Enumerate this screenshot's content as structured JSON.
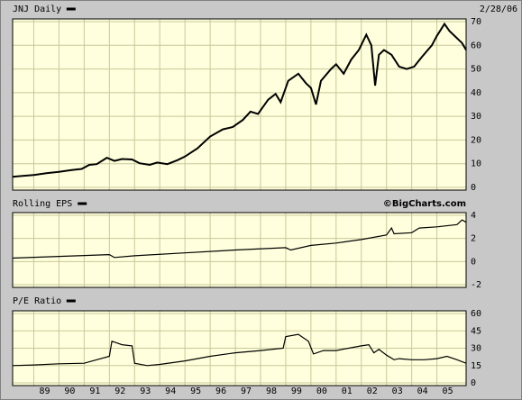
{
  "chart_data": [
    {
      "type": "line",
      "title": "JNJ Daily",
      "subtitle": "2/28/06",
      "color": "#000000",
      "grid": true,
      "x": [
        1988.16,
        1988.5,
        1989.0,
        1989.5,
        1990.0,
        1990.5,
        1990.9,
        1991.2,
        1991.5,
        1991.9,
        1992.2,
        1992.5,
        1992.9,
        1993.2,
        1993.6,
        1993.9,
        1994.3,
        1994.7,
        1995.0,
        1995.5,
        1996.0,
        1996.5,
        1996.9,
        1997.3,
        1997.6,
        1997.9,
        1998.3,
        1998.6,
        1998.8,
        1999.1,
        1999.5,
        1999.8,
        2000.0,
        2000.2,
        2000.4,
        2000.8,
        2001.0,
        2001.3,
        2001.6,
        2001.9,
        2002.2,
        2002.4,
        2002.55,
        2002.7,
        2002.9,
        2003.2,
        2003.5,
        2003.8,
        2004.1,
        2004.4,
        2004.8,
        2005.0,
        2005.3,
        2005.5,
        2005.8,
        2006.0,
        2006.16
      ],
      "values": [
        4.5,
        4.8,
        5.2,
        6.0,
        6.6,
        7.3,
        7.8,
        9.5,
        9.8,
        12.5,
        11.2,
        12.0,
        11.8,
        10.2,
        9.5,
        10.5,
        9.8,
        11.5,
        13.0,
        16.5,
        21.5,
        24.5,
        25.5,
        28.5,
        32.0,
        31.0,
        37.0,
        39.5,
        36.0,
        45.0,
        48.0,
        44.0,
        42.0,
        35.0,
        45.0,
        50.0,
        52.0,
        48.0,
        54.0,
        58.0,
        64.5,
        60.0,
        43.0,
        56.0,
        58.0,
        56.0,
        51.0,
        50.0,
        51.0,
        55.0,
        60.0,
        64.0,
        69.0,
        66.0,
        63.0,
        61.0,
        58.0
      ],
      "xlim": [
        1988.16,
        2006.16
      ],
      "ylim": [
        0,
        70
      ],
      "yticks": [
        0,
        10,
        20,
        30,
        40,
        50,
        60,
        70
      ]
    },
    {
      "type": "line",
      "title": "Rolling EPS",
      "annotation": "©BigCharts.com",
      "color": "#000000",
      "grid": true,
      "x": [
        1988.16,
        1990.0,
        1992.0,
        1992.2,
        1993.0,
        1995.0,
        1997.0,
        1999.0,
        1999.2,
        2000.0,
        2001.0,
        2002.0,
        2003.0,
        2003.2,
        2003.3,
        2004.0,
        2004.3,
        2005.0,
        2005.8,
        2006.0,
        2006.16
      ],
      "values": [
        0.3,
        0.45,
        0.6,
        0.35,
        0.5,
        0.75,
        1.0,
        1.2,
        1.0,
        1.4,
        1.6,
        1.9,
        2.3,
        2.9,
        2.4,
        2.5,
        2.9,
        3.0,
        3.2,
        3.6,
        3.4
      ],
      "xlim": [
        1988.16,
        2006.16
      ],
      "ylim": [
        -2,
        4
      ],
      "yticks": [
        -2,
        0,
        2,
        4
      ]
    },
    {
      "type": "line",
      "title": "P/E Ratio",
      "color": "#000000",
      "grid": true,
      "x": [
        1988.16,
        1989.0,
        1990.0,
        1991.0,
        1991.5,
        1992.0,
        1992.1,
        1992.5,
        1992.9,
        1993.0,
        1993.5,
        1994.0,
        1995.0,
        1996.0,
        1997.0,
        1998.0,
        1998.9,
        1999.0,
        1999.5,
        1999.9,
        2000.1,
        2000.5,
        2001.0,
        2001.5,
        2002.0,
        2002.3,
        2002.5,
        2002.7,
        2003.0,
        2003.3,
        2003.5,
        2004.0,
        2004.5,
        2005.0,
        2005.4,
        2005.8,
        2006.16
      ],
      "values": [
        15,
        15.5,
        16.5,
        17,
        20,
        23,
        36,
        33,
        32,
        17,
        15,
        16,
        19,
        23,
        26,
        28,
        30,
        40,
        42,
        36,
        25,
        28,
        28,
        30,
        32,
        33,
        26,
        29,
        24,
        20,
        21,
        20,
        20,
        21,
        23,
        20,
        17
      ],
      "xlim": [
        1988.16,
        2006.16
      ],
      "ylim": [
        0,
        60
      ],
      "yticks": [
        0,
        15,
        30,
        45,
        60
      ],
      "xticks": [
        {
          "value": 1989,
          "label": "89"
        },
        {
          "value": 1990,
          "label": "90"
        },
        {
          "value": 1991,
          "label": "91"
        },
        {
          "value": 1992,
          "label": "92"
        },
        {
          "value": 1993,
          "label": "93"
        },
        {
          "value": 1994,
          "label": "94"
        },
        {
          "value": 1995,
          "label": "95"
        },
        {
          "value": 1996,
          "label": "96"
        },
        {
          "value": 1997,
          "label": "97"
        },
        {
          "value": 1998,
          "label": "98"
        },
        {
          "value": 1999,
          "label": "99"
        },
        {
          "value": 2000,
          "label": "00"
        },
        {
          "value": 2001,
          "label": "01"
        },
        {
          "value": 2002,
          "label": "02"
        },
        {
          "value": 2003,
          "label": "03"
        },
        {
          "value": 2004,
          "label": "04"
        },
        {
          "value": 2005,
          "label": "05"
        }
      ]
    }
  ]
}
